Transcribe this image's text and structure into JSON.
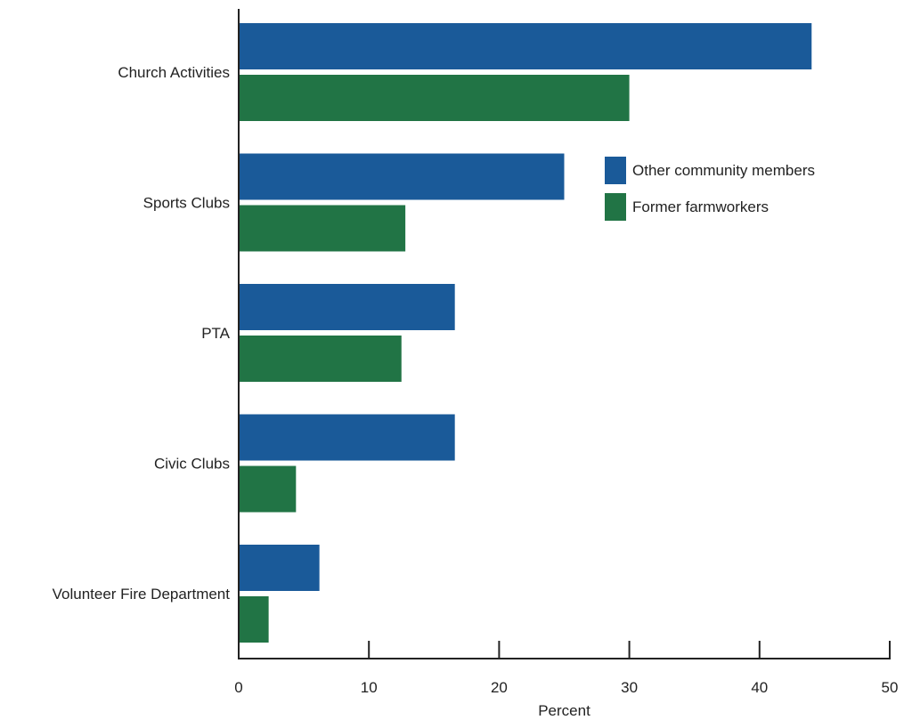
{
  "chart_data": {
    "type": "bar",
    "orientation": "horizontal",
    "categories": [
      "Church Activities",
      "Sports Clubs",
      "PTA",
      "Civic Clubs",
      "Volunteer Fire Department"
    ],
    "series": [
      {
        "name": "Other community members",
        "values": [
          44,
          25,
          16.6,
          16.6,
          6.2
        ],
        "color": "#1a5a99"
      },
      {
        "name": "Former farmworkers",
        "values": [
          30,
          12.8,
          12.5,
          4.4,
          2.3
        ],
        "color": "#217445"
      }
    ],
    "xlabel": "Percent",
    "ylabel": "",
    "xlim": [
      0,
      50
    ],
    "xticks": [
      0,
      10,
      20,
      30,
      40,
      50
    ],
    "grid": false,
    "legend_position": "right"
  }
}
